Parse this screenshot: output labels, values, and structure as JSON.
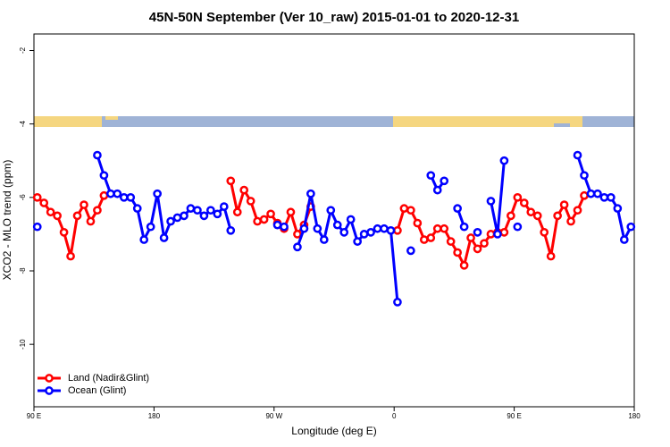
{
  "chart_data": {
    "type": "line",
    "title": "45N-50N September (Ver 10_raw)   2015-01-01 to 2020-12-31",
    "x_label": "Longitude (deg E)",
    "y_label": "XCO2 - MLO trend (ppm)",
    "xlim": [
      90,
      540
    ],
    "xticks": [
      {
        "value": 90,
        "label": "90 E"
      },
      180,
      {
        "value": 270,
        "label": "90 W"
      },
      {
        "value": 360,
        "label": "0"
      },
      {
        "value": 450,
        "label": "90 E"
      },
      {
        "value": 540,
        "label": "180"
      }
    ],
    "ylim": [
      -11.7,
      -1.55
    ],
    "yticks": [
      -2,
      -4,
      -6,
      -8,
      -10
    ],
    "legend": "bottomleft",
    "x": [
      92.5,
      97.5,
      102.5,
      107.5,
      112.5,
      117.5,
      122.5,
      127.5,
      132.5,
      137.5,
      142.5,
      147.5,
      152.5,
      157.5,
      162.5,
      167.5,
      172.5,
      177.5,
      182.5,
      187.5,
      192.5,
      197.5,
      202.5,
      207.5,
      212.5,
      217.5,
      222.5,
      227.5,
      232.5,
      237.5,
      242.5,
      247.5,
      252.5,
      257.5,
      262.5,
      267.5,
      272.5,
      277.5,
      282.5,
      287.5,
      292.5,
      297.5,
      302.5,
      307.5,
      312.5,
      317.5,
      322.5,
      327.5,
      332.5,
      337.5,
      342.5,
      347.5,
      352.5,
      357.5,
      362.5,
      367.5,
      372.5,
      377.5,
      382.5,
      387.5,
      392.5,
      397.5,
      402.5,
      407.5,
      412.5,
      417.5,
      422.5,
      427.5,
      432.5,
      437.5,
      442.5,
      447.5,
      452.5,
      457.5,
      462.5,
      467.5,
      472.5,
      477.5,
      482.5,
      487.5,
      492.5,
      497.5,
      502.5,
      507.5,
      512.5,
      517.5,
      522.5,
      527.5,
      532.5,
      537.5
    ],
    "series": [
      {
        "name": "Land (Nadir&Glint)",
        "color": "#ff0000",
        "values": [
          -6.0,
          -6.15,
          -6.4,
          -6.5,
          -6.95,
          -7.6,
          -6.5,
          -6.2,
          -6.65,
          -6.35,
          -5.95,
          null,
          null,
          null,
          null,
          null,
          null,
          null,
          null,
          null,
          null,
          null,
          null,
          null,
          null,
          null,
          null,
          null,
          null,
          -5.55,
          -6.4,
          -5.8,
          -6.1,
          -6.65,
          -6.6,
          -6.45,
          -6.7,
          -6.85,
          -6.4,
          -7.0,
          -6.75,
          -6.25,
          null,
          null,
          null,
          null,
          null,
          null,
          null,
          null,
          null,
          null,
          null,
          null,
          -6.9,
          -6.3,
          -6.35,
          -6.7,
          -7.15,
          -7.1,
          -6.85,
          -6.85,
          -7.2,
          -7.5,
          -7.85,
          -7.1,
          -7.4,
          -7.25,
          -7.0,
          -6.95,
          -6.95,
          -6.5,
          -6.0,
          -6.15,
          -6.4,
          -6.5,
          -6.95,
          -7.6,
          -6.5,
          -6.2,
          -6.65,
          -6.35,
          -5.95,
          null,
          null,
          null,
          null,
          null,
          null,
          null
        ]
      },
      {
        "name": "Ocean (Glint)",
        "color": "#0000ff",
        "values": [
          -6.8,
          null,
          null,
          null,
          null,
          null,
          null,
          null,
          null,
          -4.85,
          -5.4,
          -5.9,
          -5.9,
          -6.0,
          -6.0,
          -6.3,
          -7.15,
          -6.8,
          -5.9,
          -7.1,
          -6.65,
          -6.55,
          -6.5,
          -6.3,
          -6.35,
          -6.5,
          -6.35,
          -6.45,
          -6.25,
          -6.9,
          null,
          null,
          null,
          null,
          null,
          null,
          -6.75,
          -6.8,
          null,
          -7.35,
          -6.85,
          -5.9,
          -6.85,
          -7.15,
          -6.35,
          -6.75,
          -6.95,
          -6.6,
          -7.2,
          -7.0,
          -6.95,
          -6.85,
          -6.85,
          -6.9,
          -8.85,
          null,
          -7.45,
          null,
          null,
          -5.4,
          -5.8,
          -5.55,
          null,
          -6.3,
          -6.8,
          null,
          -6.95,
          null,
          -6.1,
          -7.0,
          -5.0,
          null,
          -6.8,
          null,
          null,
          null,
          null,
          null,
          null,
          null,
          null,
          -4.85,
          -5.4,
          -5.9,
          -5.9,
          -6.0,
          -6.0,
          -6.3,
          -7.15,
          -6.8
        ]
      }
    ]
  }
}
